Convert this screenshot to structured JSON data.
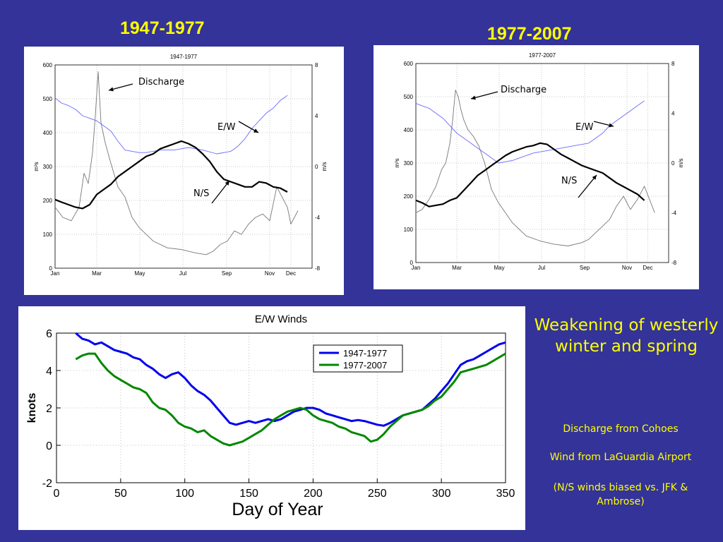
{
  "slide": {
    "title_left": "1947-1977",
    "title_right": "1977-2007",
    "headline": "Weakening of westerly winter and spring",
    "notes": [
      "Discharge from Cohoes",
      "Wind from LaGuardia Airport",
      "(N/S winds biased vs. JFK & Ambrose)"
    ],
    "colors": {
      "background": "#333399",
      "text": "#FFFF00"
    }
  },
  "chart_data": [
    {
      "id": "top-left",
      "type": "line",
      "title": "1947-1977",
      "ylabel_left": "m³s",
      "ylabel_right": "m/s",
      "ylim_left": [
        0,
        600
      ],
      "ylim_right": [
        -8,
        8
      ],
      "yticks_left": [
        "600",
        "500",
        "400",
        "300",
        "200",
        "100",
        "0"
      ],
      "yticks_right": [
        "8",
        "4",
        "0",
        "-4",
        "-8"
      ],
      "x_tick_labels": [
        "Jan",
        "Mar",
        "May",
        "Jul",
        "Sep",
        "Nov",
        "Dec"
      ],
      "x_tick_days": [
        1,
        60,
        121,
        182,
        244,
        305,
        335
      ],
      "grid": true,
      "annotations": [
        {
          "label": "Discharge",
          "series": "discharge"
        },
        {
          "label": "E/W",
          "series": "ew"
        },
        {
          "label": "N/S",
          "series": "ns"
        }
      ],
      "series": [
        {
          "name": "Discharge",
          "axis": "left",
          "color": "#777777",
          "x": [
            1,
            12,
            24,
            35,
            42,
            48,
            54,
            58,
            62,
            66,
            72,
            80,
            90,
            100,
            110,
            120,
            140,
            160,
            180,
            200,
            215,
            225,
            235,
            245,
            255,
            265,
            275,
            285,
            295,
            305,
            315,
            330,
            335,
            345
          ],
          "values": [
            180,
            150,
            140,
            180,
            280,
            250,
            340,
            450,
            580,
            430,
            370,
            310,
            240,
            210,
            150,
            120,
            80,
            60,
            55,
            45,
            40,
            50,
            70,
            80,
            110,
            100,
            130,
            150,
            160,
            140,
            240,
            180,
            130,
            170
          ]
        },
        {
          "name": "E/W",
          "axis": "right",
          "color": "#6a6aff",
          "x": [
            1,
            10,
            20,
            30,
            40,
            50,
            60,
            70,
            80,
            90,
            100,
            110,
            120,
            130,
            150,
            170,
            190,
            210,
            230,
            250,
            260,
            270,
            280,
            290,
            300,
            310,
            320,
            330
          ],
          "values": [
            5.4,
            5.0,
            4.8,
            4.5,
            4.0,
            3.8,
            3.6,
            3.2,
            2.8,
            2.0,
            1.3,
            1.2,
            1.1,
            1.1,
            1.3,
            1.3,
            1.5,
            1.3,
            1.0,
            1.2,
            1.6,
            2.2,
            3.0,
            3.6,
            4.2,
            4.6,
            5.2,
            5.6
          ]
        },
        {
          "name": "N/S",
          "axis": "right",
          "color": "#000000",
          "x": [
            1,
            10,
            20,
            30,
            40,
            50,
            60,
            70,
            80,
            90,
            100,
            110,
            120,
            130,
            140,
            150,
            160,
            170,
            180,
            190,
            200,
            210,
            220,
            230,
            240,
            250,
            260,
            270,
            280,
            290,
            300,
            310,
            320,
            330
          ],
          "values": [
            -2.6,
            -2.8,
            -3.0,
            -3.2,
            -3.3,
            -3.0,
            -2.2,
            -1.8,
            -1.4,
            -0.8,
            -0.4,
            0.0,
            0.4,
            0.8,
            1.0,
            1.4,
            1.6,
            1.8,
            2.0,
            1.8,
            1.5,
            1.0,
            0.4,
            -0.4,
            -1.0,
            -1.2,
            -1.4,
            -1.6,
            -1.6,
            -1.2,
            -1.3,
            -1.6,
            -1.7,
            -2.0
          ]
        }
      ]
    },
    {
      "id": "top-right",
      "type": "line",
      "title": "1977-2007",
      "ylabel_left": "m³s",
      "ylabel_right": "m/s",
      "ylim_left": [
        0,
        600
      ],
      "ylim_right": [
        -8,
        8
      ],
      "yticks_left": [
        "600",
        "500",
        "400",
        "300",
        "200",
        "100",
        "0"
      ],
      "yticks_right": [
        "8",
        "4",
        "0",
        "-4",
        "-8"
      ],
      "x_tick_labels": [
        "Jan",
        "Mar",
        "May",
        "Jul",
        "Sep",
        "Nov",
        "Dec"
      ],
      "x_tick_days": [
        1,
        60,
        121,
        182,
        244,
        305,
        335
      ],
      "grid": true,
      "annotations": [
        {
          "label": "Discharge",
          "series": "discharge"
        },
        {
          "label": "E/W",
          "series": "ew"
        },
        {
          "label": "N/S",
          "series": "ns"
        }
      ],
      "series": [
        {
          "name": "Discharge",
          "axis": "left",
          "color": "#777777",
          "x": [
            1,
            10,
            20,
            30,
            38,
            44,
            50,
            54,
            58,
            62,
            66,
            70,
            76,
            84,
            92,
            100,
            110,
            120,
            140,
            160,
            180,
            200,
            220,
            240,
            250,
            260,
            270,
            280,
            290,
            300,
            310,
            320,
            330,
            345
          ],
          "values": [
            150,
            160,
            190,
            230,
            280,
            300,
            360,
            430,
            520,
            500,
            460,
            430,
            400,
            380,
            350,
            300,
            220,
            180,
            120,
            80,
            65,
            55,
            50,
            60,
            70,
            90,
            110,
            130,
            170,
            200,
            160,
            190,
            230,
            150
          ]
        },
        {
          "name": "E/W",
          "axis": "right",
          "color": "#6a6aff",
          "x": [
            1,
            10,
            20,
            30,
            40,
            50,
            60,
            70,
            80,
            90,
            100,
            110,
            120,
            130,
            140,
            150,
            170,
            190,
            210,
            230,
            250,
            260,
            270,
            280,
            290,
            300,
            310,
            320,
            330
          ],
          "values": [
            4.8,
            4.6,
            4.4,
            4.0,
            3.6,
            3.0,
            2.4,
            2.0,
            1.6,
            1.2,
            0.8,
            0.4,
            0.0,
            0.1,
            0.2,
            0.4,
            0.8,
            1.0,
            1.2,
            1.4,
            1.6,
            2.0,
            2.4,
            3.0,
            3.4,
            3.8,
            4.2,
            4.6,
            5.0
          ]
        },
        {
          "name": "N/S",
          "axis": "right",
          "color": "#000000",
          "x": [
            1,
            10,
            20,
            30,
            40,
            50,
            60,
            70,
            80,
            90,
            100,
            110,
            120,
            130,
            140,
            150,
            160,
            170,
            180,
            190,
            200,
            210,
            220,
            230,
            240,
            250,
            260,
            270,
            280,
            290,
            300,
            310,
            320,
            330
          ],
          "values": [
            -3.0,
            -3.2,
            -3.5,
            -3.4,
            -3.3,
            -3.0,
            -2.8,
            -2.2,
            -1.6,
            -1.0,
            -0.6,
            -0.2,
            0.2,
            0.6,
            0.9,
            1.1,
            1.3,
            1.4,
            1.6,
            1.5,
            1.1,
            0.7,
            0.4,
            0.1,
            -0.2,
            -0.4,
            -0.6,
            -0.8,
            -1.2,
            -1.6,
            -1.9,
            -2.2,
            -2.5,
            -3.0
          ]
        }
      ]
    },
    {
      "id": "bottom",
      "type": "line",
      "title": "E/W Winds",
      "xlabel": "Day of Year",
      "ylabel": "knots",
      "xlim": [
        0,
        350
      ],
      "ylim": [
        -2,
        6
      ],
      "xticks": [
        0,
        50,
        100,
        150,
        200,
        250,
        300,
        350
      ],
      "yticks": [
        -2,
        0,
        2,
        4,
        6
      ],
      "grid": true,
      "legend": "top-right",
      "series": [
        {
          "name": "1947-1977",
          "color": "#0000EE",
          "x": [
            15,
            20,
            25,
            30,
            35,
            40,
            45,
            50,
            55,
            60,
            65,
            70,
            75,
            80,
            85,
            90,
            95,
            100,
            105,
            110,
            115,
            120,
            125,
            130,
            135,
            140,
            145,
            150,
            155,
            160,
            165,
            170,
            175,
            180,
            185,
            190,
            195,
            200,
            205,
            210,
            215,
            220,
            225,
            230,
            235,
            240,
            245,
            250,
            255,
            260,
            265,
            270,
            275,
            280,
            285,
            290,
            295,
            300,
            305,
            310,
            315,
            320,
            325,
            330,
            335,
            340,
            345,
            350
          ],
          "values": [
            6.0,
            5.7,
            5.6,
            5.4,
            5.5,
            5.3,
            5.1,
            5.0,
            4.9,
            4.7,
            4.6,
            4.3,
            4.1,
            3.8,
            3.6,
            3.8,
            3.9,
            3.6,
            3.2,
            2.9,
            2.7,
            2.4,
            2.0,
            1.6,
            1.2,
            1.1,
            1.2,
            1.3,
            1.2,
            1.3,
            1.4,
            1.3,
            1.4,
            1.6,
            1.8,
            1.9,
            2.0,
            2.0,
            1.9,
            1.7,
            1.6,
            1.5,
            1.4,
            1.3,
            1.35,
            1.3,
            1.2,
            1.1,
            1.05,
            1.2,
            1.4,
            1.6,
            1.7,
            1.8,
            1.9,
            2.2,
            2.5,
            2.9,
            3.3,
            3.8,
            4.3,
            4.5,
            4.6,
            4.8,
            5.0,
            5.2,
            5.4,
            5.5
          ]
        },
        {
          "name": "1977-2007",
          "color": "#008800",
          "x": [
            15,
            20,
            25,
            30,
            35,
            40,
            45,
            50,
            55,
            60,
            65,
            70,
            75,
            80,
            85,
            90,
            95,
            100,
            105,
            110,
            115,
            120,
            125,
            130,
            135,
            140,
            145,
            150,
            155,
            160,
            165,
            170,
            175,
            180,
            185,
            190,
            195,
            200,
            205,
            210,
            215,
            220,
            225,
            230,
            235,
            240,
            245,
            250,
            255,
            260,
            265,
            270,
            275,
            280,
            285,
            290,
            295,
            300,
            305,
            310,
            315,
            320,
            325,
            330,
            335,
            340,
            345,
            350
          ],
          "values": [
            4.6,
            4.8,
            4.9,
            4.9,
            4.4,
            4.0,
            3.7,
            3.5,
            3.3,
            3.1,
            3.0,
            2.8,
            2.3,
            2.0,
            1.9,
            1.6,
            1.2,
            1.0,
            0.9,
            0.7,
            0.8,
            0.5,
            0.3,
            0.1,
            0.0,
            0.1,
            0.2,
            0.4,
            0.6,
            0.8,
            1.1,
            1.4,
            1.6,
            1.8,
            1.9,
            2.0,
            1.9,
            1.6,
            1.4,
            1.3,
            1.2,
            1.0,
            0.9,
            0.7,
            0.6,
            0.5,
            0.2,
            0.3,
            0.6,
            1.0,
            1.3,
            1.6,
            1.7,
            1.8,
            1.9,
            2.1,
            2.4,
            2.6,
            3.0,
            3.4,
            3.9,
            4.0,
            4.1,
            4.2,
            4.3,
            4.5,
            4.7,
            4.9
          ]
        }
      ]
    }
  ]
}
